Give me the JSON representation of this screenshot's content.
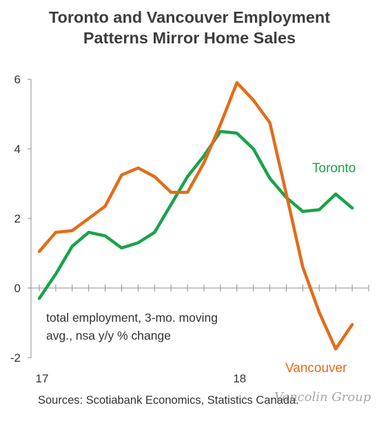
{
  "chart_data": {
    "type": "line",
    "title_lines": [
      "Toronto and Vancouver Employment",
      "Patterns Mirror Home Sales"
    ],
    "x_tick_labels": [
      {
        "label": "17",
        "at": 0
      },
      {
        "label": "18",
        "at": 12
      }
    ],
    "xlim": [
      0,
      20
    ],
    "ylim": [
      -2,
      6
    ],
    "y_ticks": [
      -2,
      0,
      2,
      4,
      6
    ],
    "note_lines": [
      "total employment, 3-mo. moving",
      "avg., nsa y/y % change"
    ],
    "series": [
      {
        "name": "Toronto",
        "color": "#19a34a",
        "x": [
          0,
          1,
          2,
          3,
          4,
          5,
          6,
          7,
          8,
          9,
          10,
          11,
          12,
          13,
          14,
          15,
          16,
          17,
          18,
          19,
          20
        ],
        "values": [
          -0.3,
          0.4,
          1.2,
          1.6,
          1.5,
          1.15,
          1.3,
          1.6,
          2.4,
          3.2,
          3.8,
          4.5,
          4.45,
          4.0,
          3.15,
          2.6,
          2.2,
          2.25,
          2.7,
          2.3,
          null
        ]
      },
      {
        "name": "Vancouver",
        "color": "#e36c1a",
        "x": [
          0,
          1,
          2,
          3,
          4,
          5,
          6,
          7,
          8,
          9,
          10,
          11,
          12,
          13,
          14,
          15,
          16,
          17,
          18,
          19,
          20
        ],
        "values": [
          1.05,
          1.6,
          1.65,
          2.0,
          2.35,
          3.25,
          3.45,
          3.2,
          2.75,
          2.75,
          3.6,
          4.7,
          5.9,
          5.4,
          4.75,
          2.7,
          0.6,
          -0.7,
          -1.75,
          -1.05,
          null
        ]
      }
    ]
  },
  "source": "Sources: Scotiabank Economics, Statistics Canada.",
  "watermark": "Vancolin Group"
}
